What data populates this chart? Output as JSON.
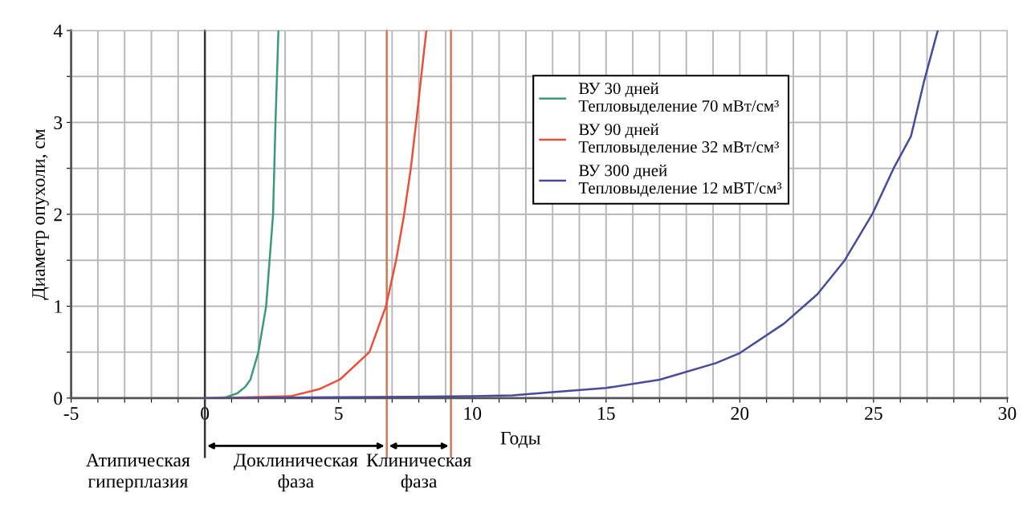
{
  "chart_data": {
    "type": "line",
    "xlabel": "Годы",
    "ylabel": "Диаметр опухоли, см",
    "xlim": [
      -5,
      30
    ],
    "ylim": [
      0,
      4
    ],
    "xticks": [
      {
        "value": -5,
        "label": "-5"
      },
      {
        "value": -4,
        "label": null
      },
      {
        "value": -3,
        "label": null
      },
      {
        "value": -2,
        "label": null
      },
      {
        "value": -1,
        "label": null
      },
      0,
      {
        "value": 1,
        "label": null
      },
      {
        "value": 2,
        "label": null
      },
      {
        "value": 3,
        "label": null
      },
      {
        "value": 4,
        "label": null
      },
      5,
      {
        "value": 6,
        "label": null
      },
      {
        "value": 7,
        "label": null
      },
      {
        "value": 8,
        "label": null
      },
      {
        "value": 9,
        "label": null
      },
      10,
      {
        "value": 11,
        "label": null
      },
      {
        "value": 12,
        "label": null
      },
      {
        "value": 13,
        "label": null
      },
      {
        "value": 14,
        "label": null
      },
      15,
      {
        "value": 16,
        "label": null
      },
      {
        "value": 17,
        "label": null
      },
      {
        "value": 18,
        "label": null
      },
      {
        "value": 19,
        "label": null
      },
      20,
      {
        "value": 21,
        "label": null
      },
      {
        "value": 22,
        "label": null
      },
      {
        "value": 23,
        "label": null
      },
      {
        "value": 24,
        "label": null
      },
      25,
      {
        "value": 26,
        "label": null
      },
      {
        "value": 27,
        "label": null
      },
      {
        "value": 28,
        "label": null
      },
      {
        "value": 29,
        "label": null
      },
      30
    ],
    "yticks": [
      0,
      {
        "value": 0.5,
        "label": null
      },
      1,
      {
        "value": 1.5,
        "label": null
      },
      2,
      {
        "value": 2.5,
        "label": null
      },
      3,
      {
        "value": 3.5,
        "label": null
      },
      4
    ],
    "grid": true,
    "legend": "top",
    "marker": "none",
    "line_style": "solid",
    "series": [
      {
        "name": "ВУ 30 дней\nТепловыделение 70 мВт/см³",
        "color": "#3a9a78",
        "x": [
          0.3,
          0.8,
          1.2,
          1.5,
          1.7,
          2.0,
          2.29,
          2.55,
          2.64,
          2.75
        ],
        "values": [
          0,
          0.01,
          0.05,
          0.12,
          0.2,
          0.5,
          1.0,
          2.0,
          3.0,
          4.0
        ]
      },
      {
        "name": "ВУ 90 дней\nТепловыделение 32 мВт/см³",
        "color": "#e8503a",
        "x": [
          0.3,
          3.2,
          4.3,
          5.04,
          6.15,
          6.77,
          7.15,
          7.45,
          7.7,
          7.9,
          8.09,
          8.28
        ],
        "values": [
          0,
          0.02,
          0.1,
          0.2,
          0.5,
          1.0,
          1.5,
          2.0,
          2.5,
          3.0,
          3.5,
          4.0
        ]
      },
      {
        "name": "ВУ 300 дней\nТепловыделение 12 мВТ/см³",
        "color": "#4a4a9a",
        "x": [
          0,
          5,
          10,
          11.5,
          12.8,
          15,
          17,
          19.1,
          20,
          21.65,
          22.9,
          23.9,
          24.95,
          25.75,
          26.4,
          26.9,
          27.4
        ],
        "values": [
          0,
          0.01,
          0.02,
          0.03,
          0.06,
          0.11,
          0.2,
          0.38,
          0.49,
          0.81,
          1.13,
          1.49,
          2.0,
          2.5,
          2.85,
          3.46,
          4.0
        ]
      }
    ],
    "ref_lines": [
      {
        "axis": "x",
        "value": 0,
        "color": "#333333"
      },
      {
        "axis": "x",
        "value": 6.8,
        "color": "#d07850"
      },
      {
        "axis": "x",
        "value": 9.2,
        "color": "#d07850"
      }
    ],
    "annotations": [
      "Атипическая\nгиперплазия",
      "Доклиническая\nфаза",
      "Клиническая\nфаза"
    ]
  }
}
